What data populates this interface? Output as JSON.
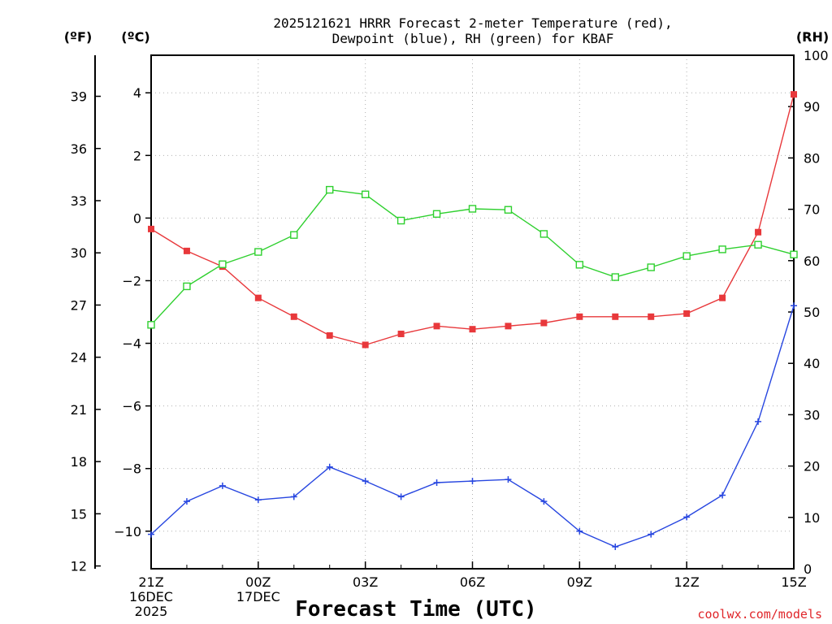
{
  "chart_data": {
    "type": "line",
    "title_line1": "2025121621 HRRR Forecast 2-meter Temperature (red),",
    "title_line2": "Dewpoint (blue), RH (green) for KBAF",
    "xlabel": "Forecast Time (UTC)",
    "credit": "coolwx.com/models",
    "unit_f": "(ºF)",
    "unit_c": "(ºC)",
    "unit_rh": "(RH)",
    "x_hours": [
      21,
      22,
      23,
      24,
      25,
      26,
      27,
      28,
      29,
      30,
      31,
      32,
      33,
      34,
      35,
      36,
      37,
      38,
      39
    ],
    "x_ticks": [
      {
        "hour": 21,
        "lines": [
          "21Z",
          "16DEC",
          "2025"
        ]
      },
      {
        "hour": 24,
        "lines": [
          "00Z",
          "17DEC"
        ]
      },
      {
        "hour": 27,
        "lines": [
          "03Z"
        ]
      },
      {
        "hour": 30,
        "lines": [
          "06Z"
        ]
      },
      {
        "hour": 33,
        "lines": [
          "09Z"
        ]
      },
      {
        "hour": 36,
        "lines": [
          "12Z"
        ]
      },
      {
        "hour": 39,
        "lines": [
          "15Z"
        ]
      }
    ],
    "celsius_axis": {
      "range": [
        -11.2,
        5.2
      ],
      "ticks": [
        4,
        2,
        0,
        -2,
        -4,
        -6,
        -8,
        -10
      ],
      "tick_labels": [
        "4",
        "2",
        "0",
        "−2",
        "−4",
        "−6",
        "−8",
        "−10"
      ]
    },
    "fahrenheit_axis": {
      "ticks": [
        39,
        36,
        33,
        30,
        27,
        24,
        21,
        18,
        15,
        12
      ],
      "tick_labels": [
        "39",
        "36",
        "33",
        "30",
        "27",
        "24",
        "21",
        "18",
        "15",
        "12"
      ]
    },
    "rh_axis": {
      "range": [
        0,
        100
      ],
      "ticks": [
        0,
        10,
        20,
        30,
        40,
        50,
        60,
        70,
        80,
        90,
        100
      ],
      "tick_labels": [
        "0",
        "10",
        "20",
        "30",
        "40",
        "50",
        "60",
        "70",
        "80",
        "90",
        "100"
      ]
    },
    "series": [
      {
        "name": "Temperature",
        "axis": "celsius",
        "color": "#e8383b",
        "marker": "filled-square",
        "values": [
          -0.35,
          -1.05,
          -1.55,
          -2.55,
          -3.15,
          -3.75,
          -4.05,
          -3.7,
          -3.45,
          -3.55,
          -3.45,
          -3.35,
          -3.15,
          -3.15,
          -3.15,
          -3.05,
          -2.55,
          -0.45,
          3.95
        ]
      },
      {
        "name": "Dewpoint",
        "axis": "celsius",
        "color": "#2746e0",
        "marker": "plus",
        "values": [
          -10.1,
          -9.05,
          -8.55,
          -9.0,
          -8.9,
          -7.95,
          -8.4,
          -8.9,
          -8.45,
          -8.4,
          -8.35,
          -9.05,
          -10.0,
          -10.5,
          -10.1,
          -9.55,
          -8.85,
          -6.5,
          -2.8
        ]
      },
      {
        "name": "RH",
        "axis": "rh",
        "color": "#2fd02f",
        "marker": "open-square",
        "values": [
          47.5,
          55,
          59.3,
          61.7,
          65,
          73.8,
          72.9,
          67.8,
          69.1,
          70.1,
          69.9,
          65.2,
          59.2,
          56.8,
          58.7,
          60.9,
          62.2,
          63.1,
          61.2
        ]
      }
    ]
  }
}
